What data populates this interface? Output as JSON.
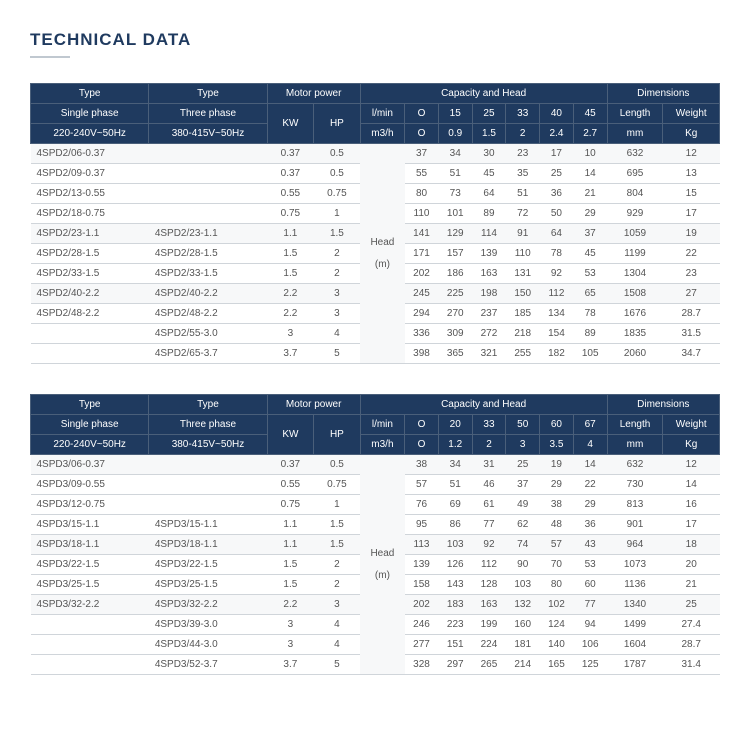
{
  "title": "TECHNICAL DATA",
  "header_bg": "#1f3a5f",
  "header_fg": "#ffffff",
  "table1": {
    "hdr": {
      "type": "Type",
      "motor": "Motor power",
      "cap": "Capacity and Head",
      "dim": "Dimensions",
      "sp": "Single phase",
      "tp": "Three phase",
      "kw": "KW",
      "hp": "HP",
      "lmin": "l/min",
      "m3h": "m3/h",
      "len": "Length",
      "wt": "Weight",
      "spv": "220-240V~50Hz",
      "tpv": "380-415V~50Hz",
      "mm": "mm",
      "kg": "Kg",
      "c": [
        "O",
        "15",
        "25",
        "33",
        "40",
        "45"
      ],
      "c2": [
        "O",
        "0.9",
        "1.5",
        "2",
        "2.4",
        "2.7"
      ],
      "head": "Head",
      "hm": "(m)"
    },
    "rows": [
      {
        "sp": "4SPD2/06-0.37",
        "tp": "",
        "kw": "0.37",
        "hp": "0.5",
        "v": [
          "37",
          "34",
          "30",
          "23",
          "17",
          "10"
        ],
        "l": "632",
        "w": "12"
      },
      {
        "sp": "4SPD2/09-0.37",
        "tp": "",
        "kw": "0.37",
        "hp": "0.5",
        "v": [
          "55",
          "51",
          "45",
          "35",
          "25",
          "14"
        ],
        "l": "695",
        "w": "13"
      },
      {
        "sp": "4SPD2/13-0.55",
        "tp": "",
        "kw": "0.55",
        "hp": "0.75",
        "v": [
          "80",
          "73",
          "64",
          "51",
          "36",
          "21"
        ],
        "l": "804",
        "w": "15"
      },
      {
        "sp": "4SPD2/18-0.75",
        "tp": "",
        "kw": "0.75",
        "hp": "1",
        "v": [
          "110",
          "101",
          "89",
          "72",
          "50",
          "29"
        ],
        "l": "929",
        "w": "17"
      },
      {
        "sp": "4SPD2/23-1.1",
        "tp": "4SPD2/23-1.1",
        "kw": "1.1",
        "hp": "1.5",
        "v": [
          "141",
          "129",
          "114",
          "91",
          "64",
          "37"
        ],
        "l": "1059",
        "w": "19"
      },
      {
        "sp": "4SPD2/28-1.5",
        "tp": "4SPD2/28-1.5",
        "kw": "1.5",
        "hp": "2",
        "v": [
          "171",
          "157",
          "139",
          "110",
          "78",
          "45"
        ],
        "l": "1199",
        "w": "22"
      },
      {
        "sp": "4SPD2/33-1.5",
        "tp": "4SPD2/33-1.5",
        "kw": "1.5",
        "hp": "2",
        "v": [
          "202",
          "186",
          "163",
          "131",
          "92",
          "53"
        ],
        "l": "1304",
        "w": "23"
      },
      {
        "sp": "4SPD2/40-2.2",
        "tp": "4SPD2/40-2.2",
        "kw": "2.2",
        "hp": "3",
        "v": [
          "245",
          "225",
          "198",
          "150",
          "112",
          "65"
        ],
        "l": "1508",
        "w": "27"
      },
      {
        "sp": "4SPD2/48-2.2",
        "tp": "4SPD2/48-2.2",
        "kw": "2.2",
        "hp": "3",
        "v": [
          "294",
          "270",
          "237",
          "185",
          "134",
          "78"
        ],
        "l": "1676",
        "w": "28.7"
      },
      {
        "sp": "",
        "tp": "4SPD2/55-3.0",
        "kw": "3",
        "hp": "4",
        "v": [
          "336",
          "309",
          "272",
          "218",
          "154",
          "89"
        ],
        "l": "1835",
        "w": "31.5"
      },
      {
        "sp": "",
        "tp": "4SPD2/65-3.7",
        "kw": "3.7",
        "hp": "5",
        "v": [
          "398",
          "365",
          "321",
          "255",
          "182",
          "105"
        ],
        "l": "2060",
        "w": "34.7"
      }
    ]
  },
  "table2": {
    "hdr": {
      "type": "Type",
      "motor": "Motor power",
      "cap": "Capacity and Head",
      "dim": "Dimensions",
      "sp": "Single phase",
      "tp": "Three phase",
      "kw": "KW",
      "hp": "HP",
      "lmin": "l/min",
      "m3h": "m3/h",
      "len": "Length",
      "wt": "Weight",
      "spv": "220-240V~50Hz",
      "tpv": "380-415V~50Hz",
      "mm": "mm",
      "kg": "Kg",
      "c": [
        "O",
        "20",
        "33",
        "50",
        "60",
        "67"
      ],
      "c2": [
        "O",
        "1.2",
        "2",
        "3",
        "3.5",
        "4"
      ],
      "head": "Head",
      "hm": "(m)"
    },
    "rows": [
      {
        "sp": "4SPD3/06-0.37",
        "tp": "",
        "kw": "0.37",
        "hp": "0.5",
        "v": [
          "38",
          "34",
          "31",
          "25",
          "19",
          "14"
        ],
        "l": "632",
        "w": "12"
      },
      {
        "sp": "4SPD3/09-0.55",
        "tp": "",
        "kw": "0.55",
        "hp": "0.75",
        "v": [
          "57",
          "51",
          "46",
          "37",
          "29",
          "22"
        ],
        "l": "730",
        "w": "14"
      },
      {
        "sp": "4SPD3/12-0.75",
        "tp": "",
        "kw": "0.75",
        "hp": "1",
        "v": [
          "76",
          "69",
          "61",
          "49",
          "38",
          "29"
        ],
        "l": "813",
        "w": "16"
      },
      {
        "sp": "4SPD3/15-1.1",
        "tp": "4SPD3/15-1.1",
        "kw": "1.1",
        "hp": "1.5",
        "v": [
          "95",
          "86",
          "77",
          "62",
          "48",
          "36"
        ],
        "l": "901",
        "w": "17"
      },
      {
        "sp": "4SPD3/18-1.1",
        "tp": "4SPD3/18-1.1",
        "kw": "1.1",
        "hp": "1.5",
        "v": [
          "113",
          "103",
          "92",
          "74",
          "57",
          "43"
        ],
        "l": "964",
        "w": "18"
      },
      {
        "sp": "4SPD3/22-1.5",
        "tp": "4SPD3/22-1.5",
        "kw": "1.5",
        "hp": "2",
        "v": [
          "139",
          "126",
          "112",
          "90",
          "70",
          "53"
        ],
        "l": "1073",
        "w": "20"
      },
      {
        "sp": "4SPD3/25-1.5",
        "tp": "4SPD3/25-1.5",
        "kw": "1.5",
        "hp": "2",
        "v": [
          "158",
          "143",
          "128",
          "103",
          "80",
          "60"
        ],
        "l": "1136",
        "w": "21"
      },
      {
        "sp": "4SPD3/32-2.2",
        "tp": "4SPD3/32-2.2",
        "kw": "2.2",
        "hp": "3",
        "v": [
          "202",
          "183",
          "163",
          "132",
          "102",
          "77"
        ],
        "l": "1340",
        "w": "25"
      },
      {
        "sp": "",
        "tp": "4SPD3/39-3.0",
        "kw": "3",
        "hp": "4",
        "v": [
          "246",
          "223",
          "199",
          "160",
          "124",
          "94"
        ],
        "l": "1499",
        "w": "27.4"
      },
      {
        "sp": "",
        "tp": "4SPD3/44-3.0",
        "kw": "3",
        "hp": "4",
        "v": [
          "277",
          "151",
          "224",
          "181",
          "140",
          "106"
        ],
        "l": "1604",
        "w": "28.7"
      },
      {
        "sp": "",
        "tp": "4SPD3/52-3.7",
        "kw": "3.7",
        "hp": "5",
        "v": [
          "328",
          "297",
          "265",
          "214",
          "165",
          "125"
        ],
        "l": "1787",
        "w": "31.4"
      }
    ]
  }
}
